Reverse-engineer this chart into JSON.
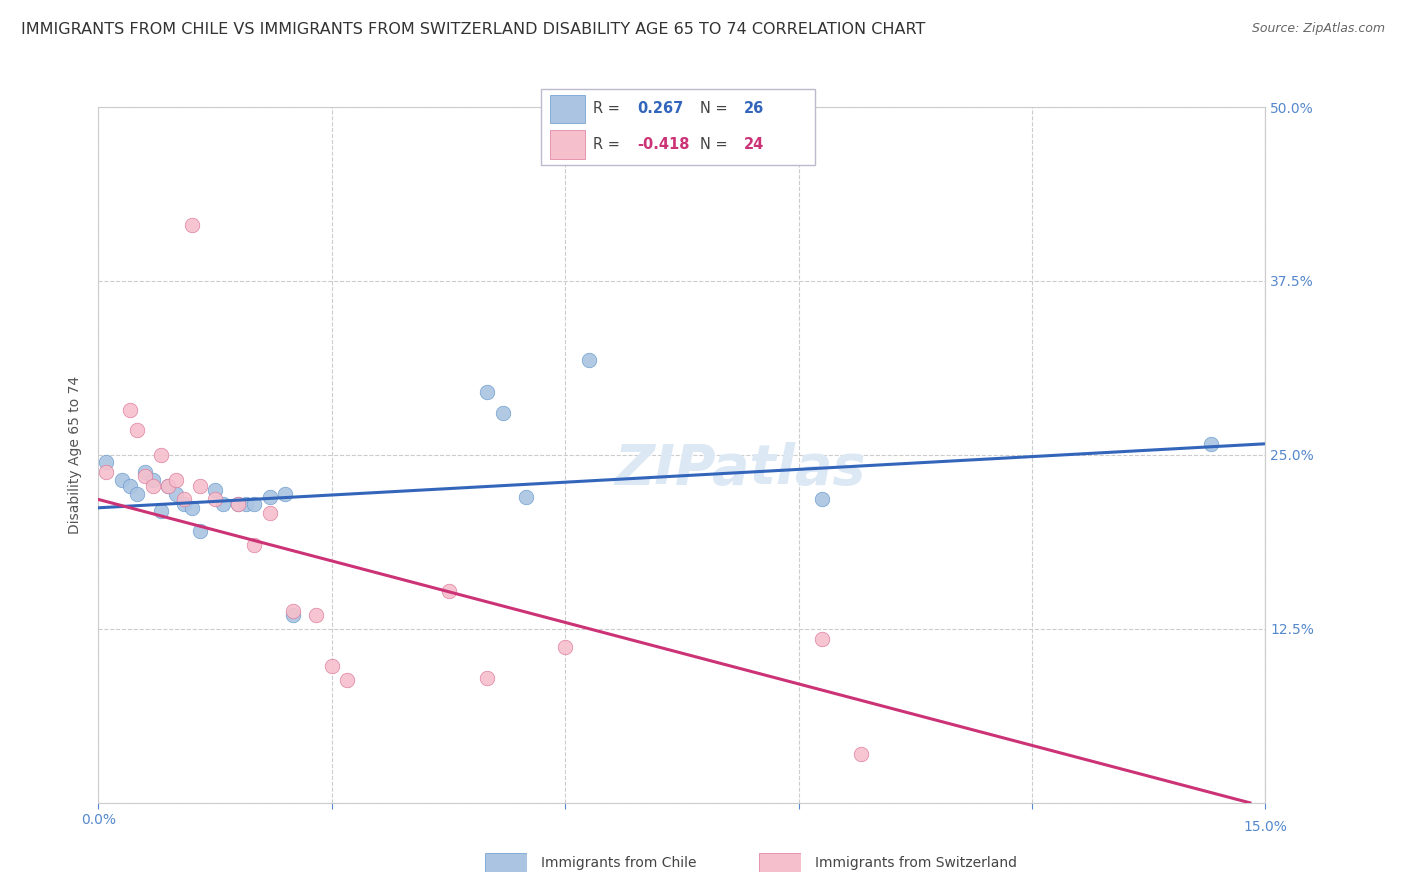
{
  "title": "IMMIGRANTS FROM CHILE VS IMMIGRANTS FROM SWITZERLAND DISABILITY AGE 65 TO 74 CORRELATION CHART",
  "source": "Source: ZipAtlas.com",
  "ylabel": "Disability Age 65 to 74",
  "xlim": [
    0.0,
    0.15
  ],
  "ylim": [
    0.0,
    0.5
  ],
  "xticks": [
    0.0,
    0.03,
    0.06,
    0.09,
    0.12,
    0.15
  ],
  "yticks": [
    0.0,
    0.125,
    0.25,
    0.375,
    0.5
  ],
  "chile_color": "#aac4e2",
  "chile_color_dark": "#6699cc",
  "switzerland_color": "#f5bfcc",
  "switzerland_color_dark": "#dd7799",
  "chile_R": "0.267",
  "chile_N": "26",
  "switzerland_R": "-0.418",
  "switzerland_N": "24",
  "chile_scatter_x": [
    0.001,
    0.003,
    0.004,
    0.005,
    0.006,
    0.007,
    0.008,
    0.009,
    0.01,
    0.011,
    0.012,
    0.013,
    0.015,
    0.016,
    0.018,
    0.019,
    0.02,
    0.022,
    0.024,
    0.025,
    0.05,
    0.052,
    0.055,
    0.063,
    0.093,
    0.143
  ],
  "chile_scatter_y": [
    0.245,
    0.232,
    0.228,
    0.222,
    0.238,
    0.232,
    0.21,
    0.228,
    0.222,
    0.215,
    0.212,
    0.195,
    0.225,
    0.215,
    0.215,
    0.215,
    0.215,
    0.22,
    0.222,
    0.135,
    0.295,
    0.28,
    0.22,
    0.318,
    0.218,
    0.258
  ],
  "switzerland_scatter_x": [
    0.001,
    0.004,
    0.005,
    0.006,
    0.007,
    0.008,
    0.009,
    0.01,
    0.011,
    0.012,
    0.013,
    0.015,
    0.018,
    0.02,
    0.022,
    0.025,
    0.028,
    0.03,
    0.032,
    0.045,
    0.05,
    0.06,
    0.093,
    0.098
  ],
  "switzerland_scatter_y": [
    0.238,
    0.282,
    0.268,
    0.235,
    0.228,
    0.25,
    0.228,
    0.232,
    0.218,
    0.415,
    0.228,
    0.218,
    0.215,
    0.185,
    0.208,
    0.138,
    0.135,
    0.098,
    0.088,
    0.152,
    0.09,
    0.112,
    0.118,
    0.035
  ],
  "chile_line_x": [
    0.0,
    0.15
  ],
  "chile_line_y": [
    0.212,
    0.258
  ],
  "switzerland_line_x": [
    0.0,
    0.148
  ],
  "switzerland_line_y": [
    0.218,
    0.0
  ],
  "watermark": "ZIPatlas",
  "chile_line_color": "#3366bb",
  "switzerland_line_color": "#cc3377",
  "grid_color": "#cccccc",
  "background_color": "#ffffff",
  "title_fontsize": 11.5,
  "axis_label_fontsize": 10,
  "tick_fontsize": 10,
  "source_fontsize": 9,
  "scatter_size": 110,
  "legend_R_color_chile": "#3366bb",
  "legend_R_color_swiss": "#cc3377",
  "legend_N_color": "#3366bb"
}
